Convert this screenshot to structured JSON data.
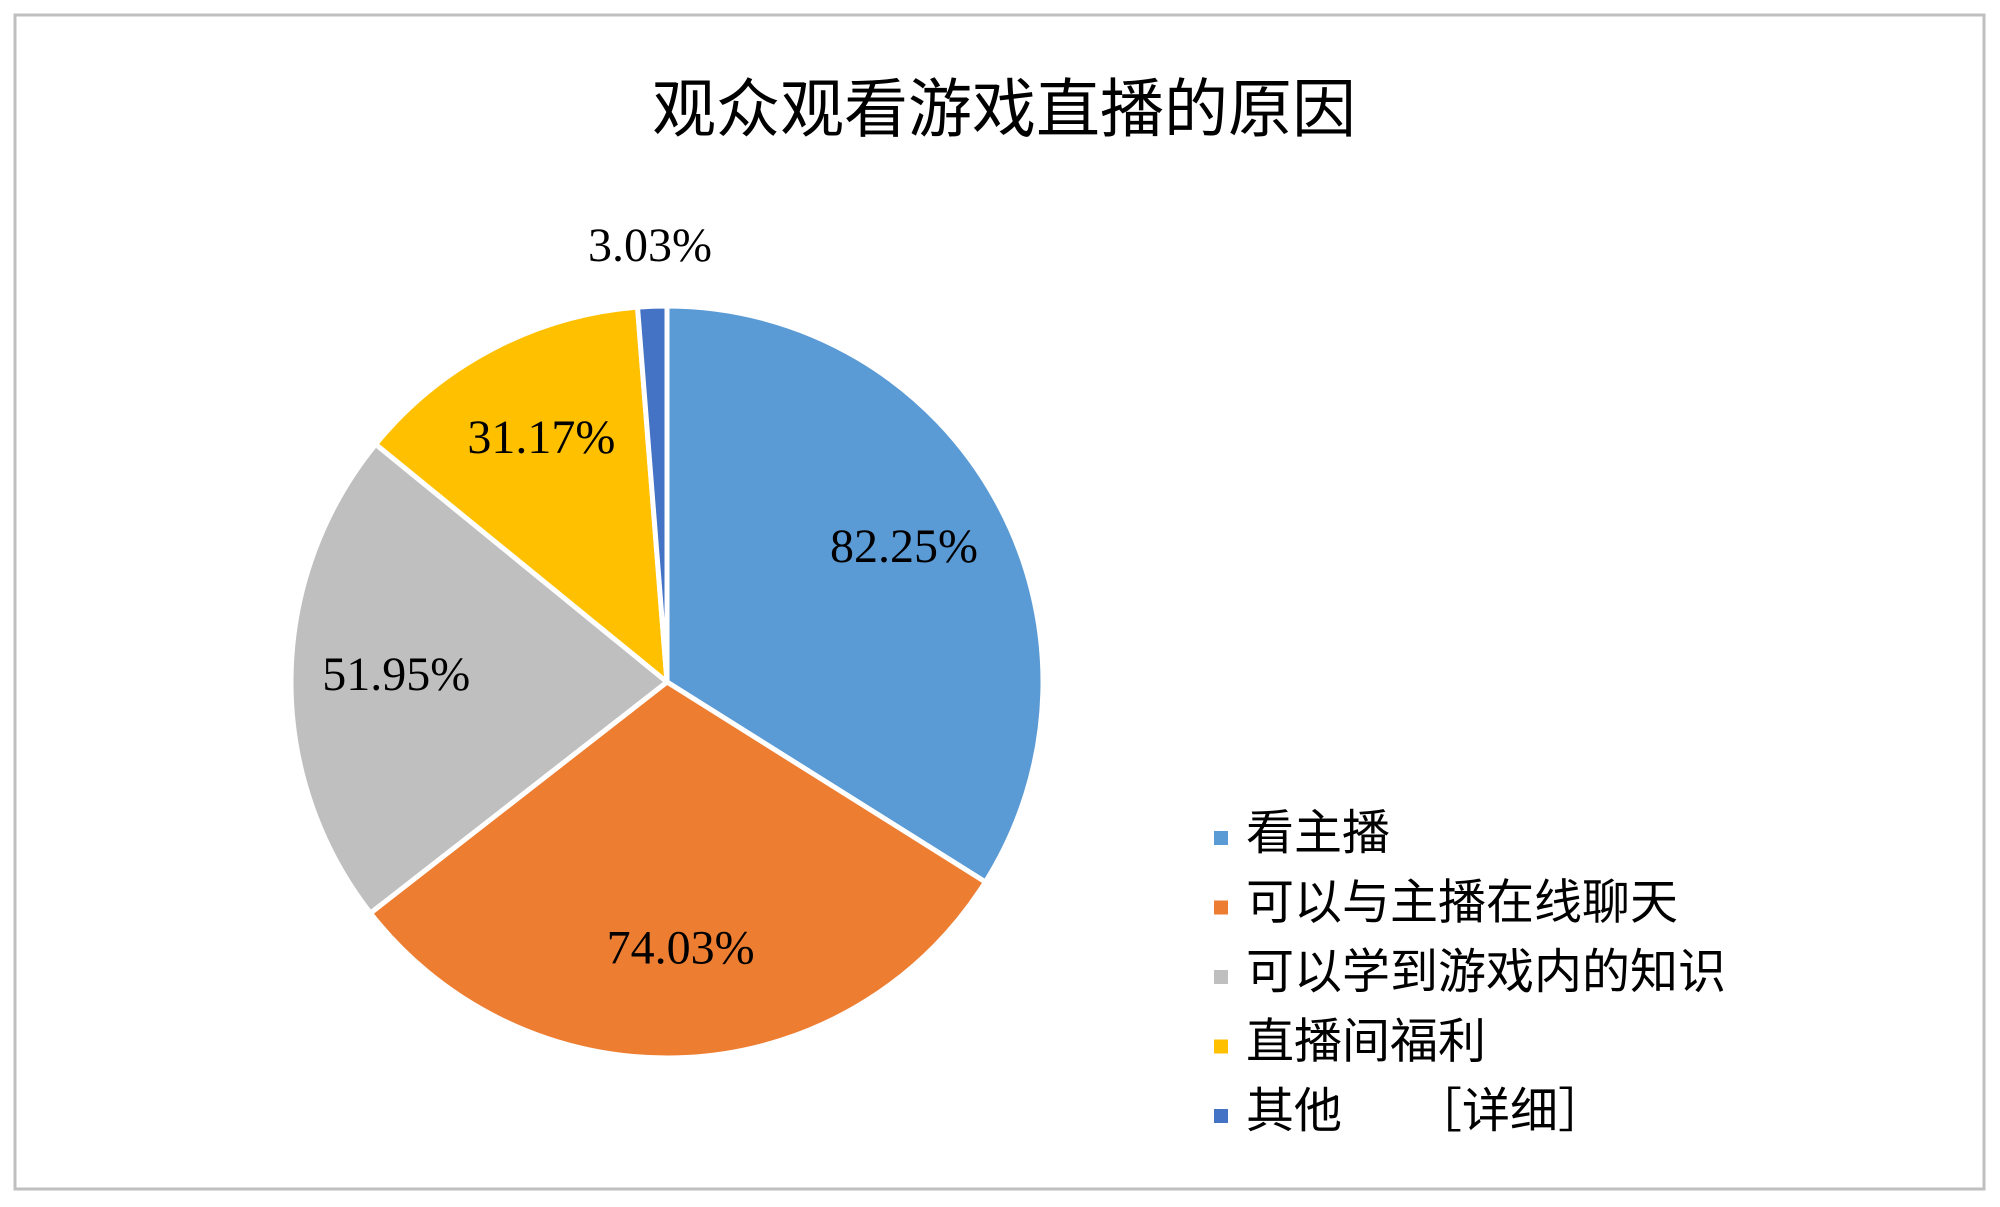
{
  "chart_data": {
    "type": "pie",
    "title": "观众观看游戏直播的原因",
    "categories": [
      "看主播",
      "可以与主播在线聊天",
      "可以学到游戏内的知识",
      "直播间福利",
      "其他　　［详细］"
    ],
    "values": [
      82.25,
      74.03,
      51.95,
      31.17,
      3.03
    ],
    "value_labels": [
      "82.25%",
      "74.03%",
      "51.95%",
      "31.17%",
      "3.03%"
    ],
    "colors": [
      "#5b9bd5",
      "#ed7d31",
      "#bfbfbf",
      "#ffc000",
      "#4472c4"
    ],
    "legend": "right"
  }
}
